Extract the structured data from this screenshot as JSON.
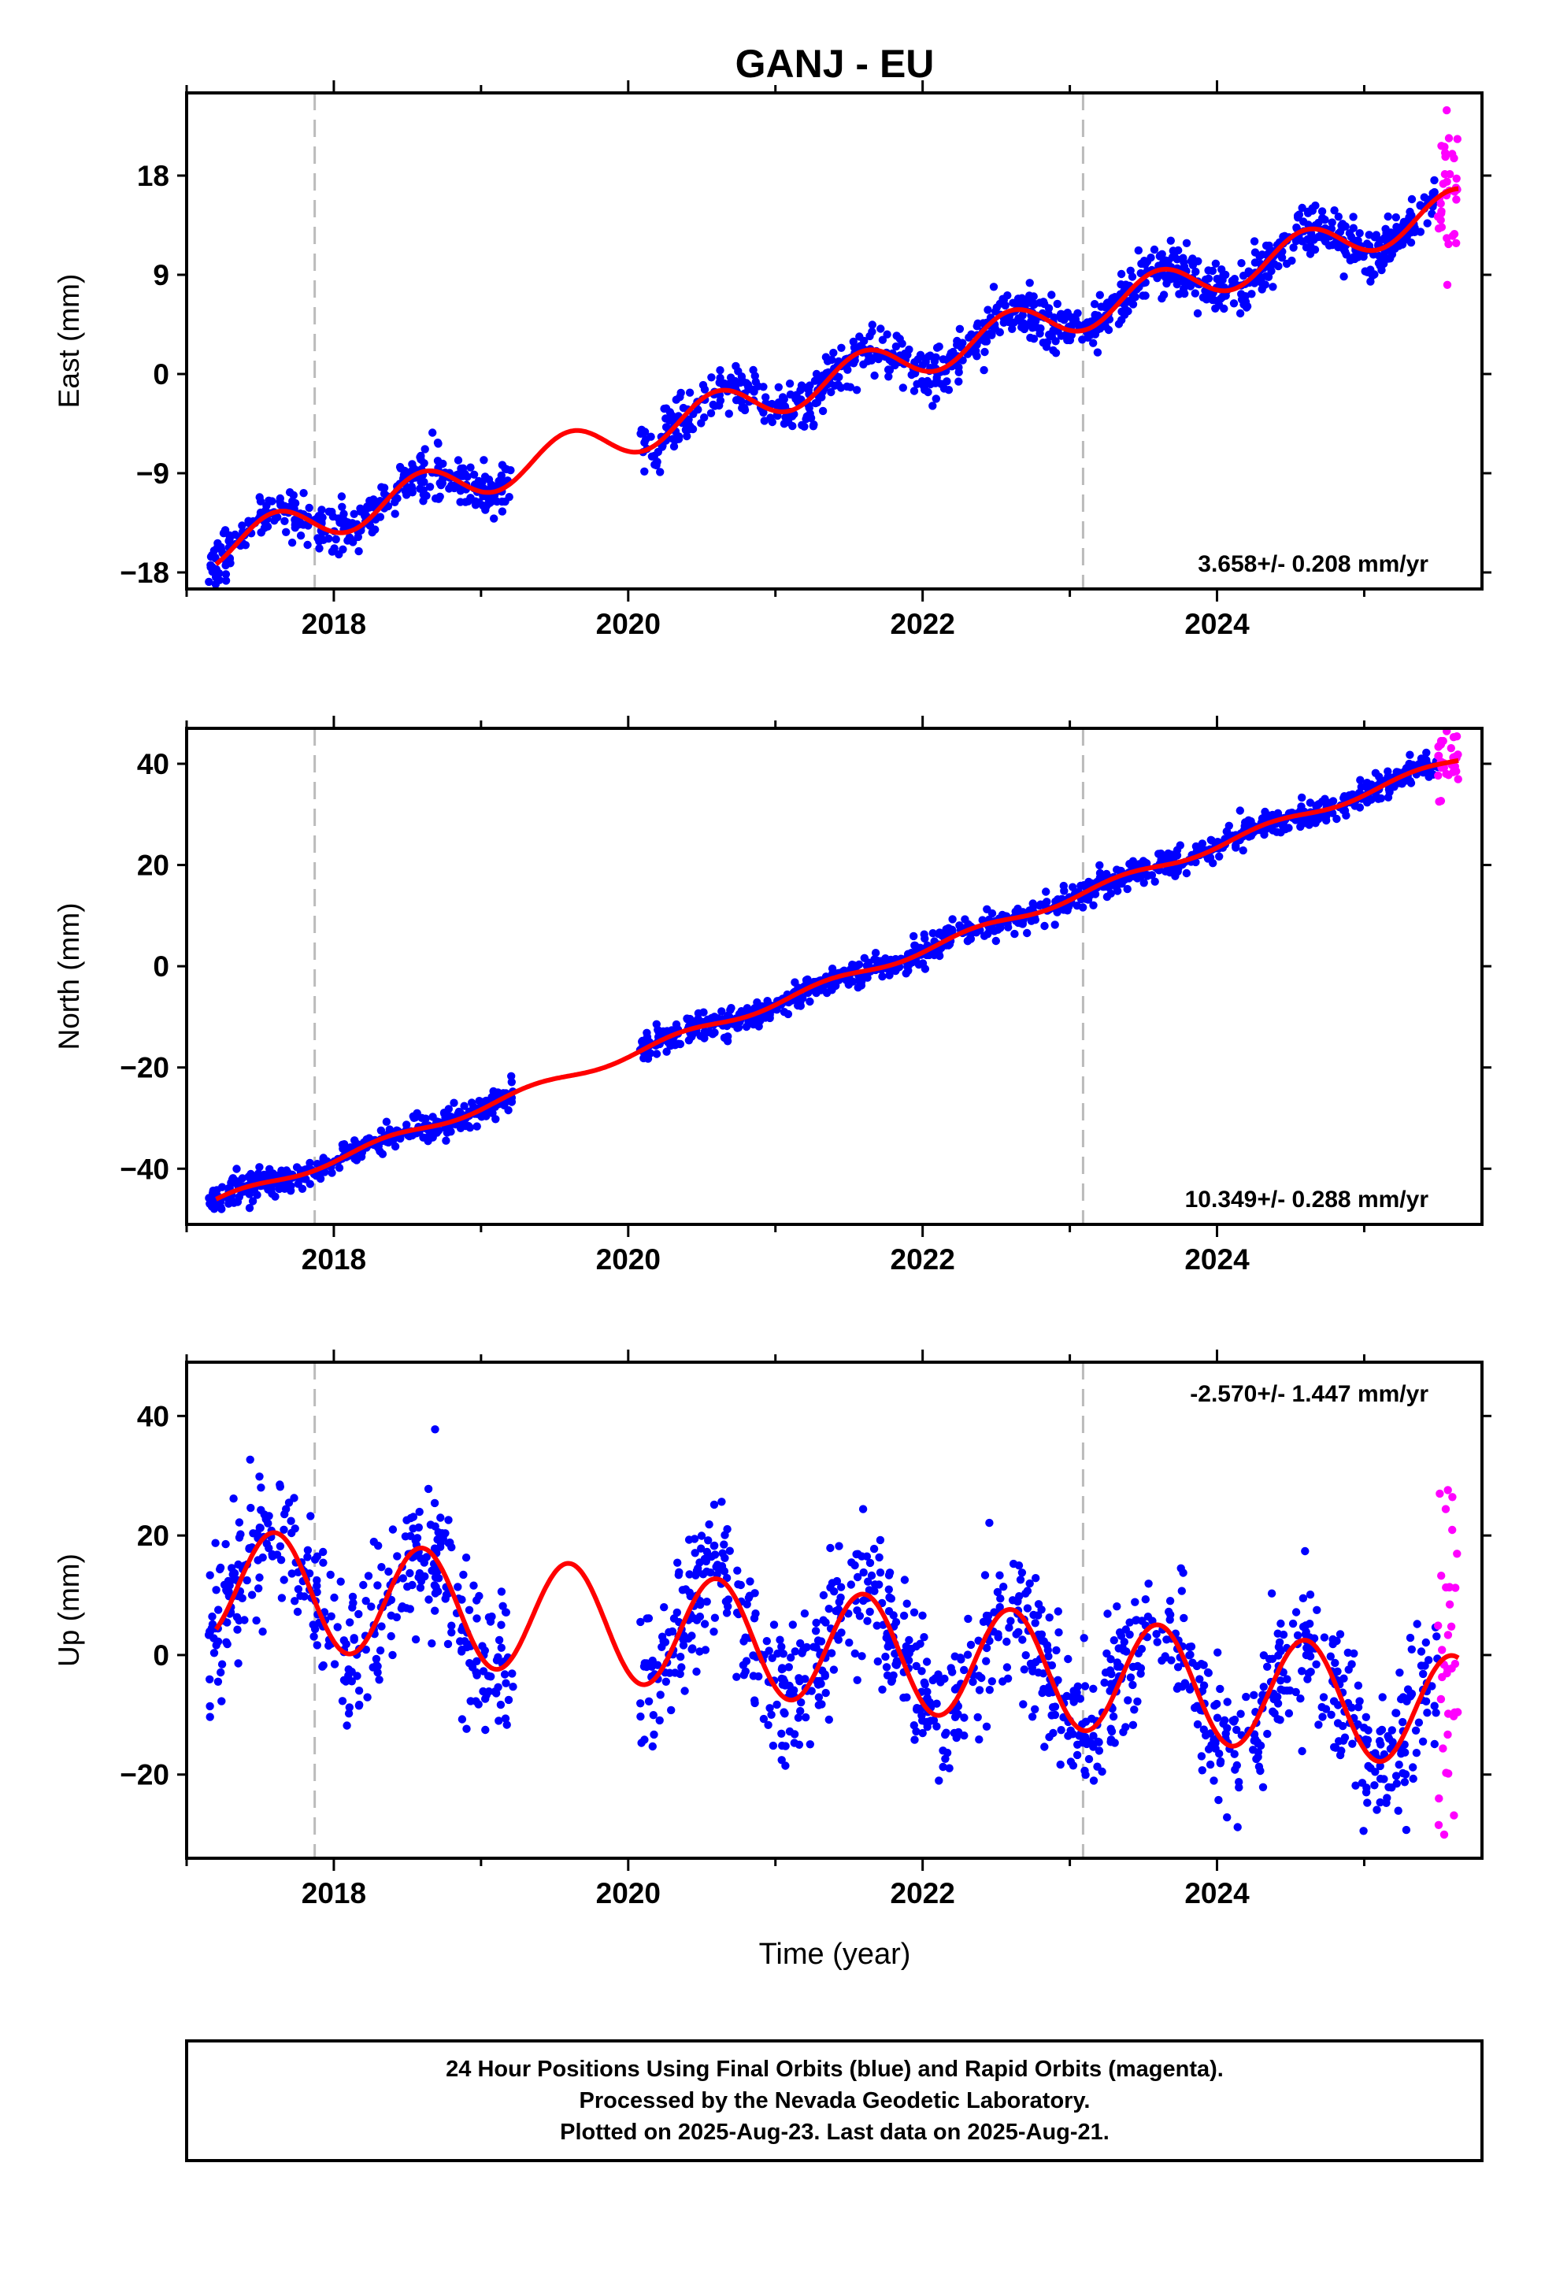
{
  "chart_data": [
    {
      "type": "scatter",
      "title": "GANJ - EU",
      "ylabel": "East (mm)",
      "xlim": [
        2017.0,
        2025.8
      ],
      "ylim": [
        -19.5,
        25.5
      ],
      "yticks": [
        -18,
        -9,
        0,
        9,
        18
      ],
      "xticks": [
        2018,
        2020,
        2022,
        2024
      ],
      "vlines": [
        2017.87,
        2023.09
      ],
      "rate_text": "3.658+/- 0.208 mm/yr",
      "rate_position": "bottom-right",
      "trend": {
        "t0": 2017.2,
        "v0": -15.8,
        "slope": 3.658,
        "amp": 1.8,
        "phase": 0.35
      },
      "gaps": [
        [
          2019.22,
          2020.08
        ]
      ],
      "noise": 1.1,
      "series": [
        {
          "color": "#0000ff",
          "x_range": [
            2017.15,
            2025.5
          ],
          "n": 1500
        },
        {
          "color": "#ff00ff",
          "x_range": [
            2025.5,
            2025.64
          ],
          "n": 35,
          "noise": 3.0
        }
      ]
    },
    {
      "type": "scatter",
      "ylabel": "North (mm)",
      "xlim": [
        2017.0,
        2025.8
      ],
      "ylim": [
        -51,
        47
      ],
      "yticks": [
        -40,
        -20,
        0,
        20,
        40
      ],
      "xticks": [
        2018,
        2020,
        2022,
        2024
      ],
      "vlines": [
        2017.87,
        2023.09
      ],
      "rate_text": "10.349+/- 0.288 mm/yr",
      "rate_position": "bottom-right",
      "trend": {
        "t0": 2017.2,
        "v0": -46.5,
        "slope": 10.349,
        "amp": 0.8,
        "phase": 0.1
      },
      "gaps": [
        [
          2019.22,
          2020.08
        ]
      ],
      "noise": 1.3,
      "series": [
        {
          "color": "#0000ff",
          "x_range": [
            2017.15,
            2025.5
          ],
          "n": 1500
        },
        {
          "color": "#ff00ff",
          "x_range": [
            2025.5,
            2025.64
          ],
          "n": 35,
          "noise": 3.5
        }
      ]
    },
    {
      "type": "scatter",
      "ylabel": "Up (mm)",
      "xlabel": "Time (year)",
      "xlim": [
        2017.0,
        2025.8
      ],
      "ylim": [
        -34,
        49
      ],
      "yticks": [
        -20,
        0,
        20,
        40
      ],
      "xticks": [
        2018,
        2020,
        2022,
        2024
      ],
      "vlines": [
        2017.87,
        2023.09
      ],
      "rate_text": "-2.570+/- 1.447 mm/yr",
      "rate_position": "top-right",
      "trend": {
        "t0": 2017.2,
        "v0": 12.0,
        "slope": -2.57,
        "amp": 9.5,
        "phase": 0.35
      },
      "gaps": [
        [
          2019.22,
          2020.08
        ]
      ],
      "noise": 6.0,
      "series": [
        {
          "color": "#0000ff",
          "x_range": [
            2017.15,
            2025.5
          ],
          "n": 1500
        },
        {
          "color": "#ff00ff",
          "x_range": [
            2025.5,
            2025.64
          ],
          "n": 35,
          "noise": 14
        }
      ]
    }
  ],
  "footer": {
    "line1": "24 Hour Positions Using Final Orbits (blue) and Rapid Orbits (magenta).",
    "line2": "Processed by the Nevada Geodetic Laboratory.",
    "line3": "Plotted on 2025-Aug-23. Last data on 2025-Aug-21."
  },
  "colors": {
    "final": "#0000ff",
    "rapid": "#ff00ff",
    "model": "#ff0000",
    "vline": "#bbbbbb"
  }
}
